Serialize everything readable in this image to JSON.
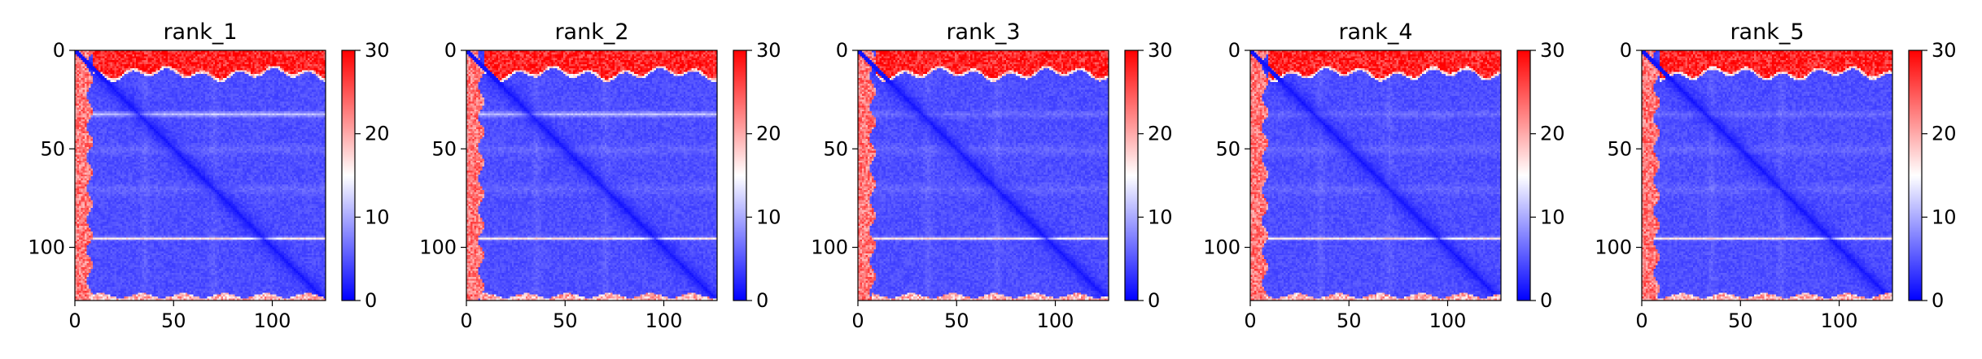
{
  "chart_data": [
    {
      "type": "heatmap",
      "title": "rank_1",
      "x_range": [
        0,
        127
      ],
      "y_range": [
        0,
        127
      ],
      "y_inverted": true,
      "x_ticks": [
        0,
        50,
        100
      ],
      "y_ticks": [
        0,
        50,
        100
      ],
      "colorbar": {
        "range": [
          0,
          30
        ],
        "ticks": [
          0,
          10,
          20,
          30
        ],
        "colormap": "bwr"
      },
      "strong_band": true
    },
    {
      "type": "heatmap",
      "title": "rank_2",
      "x_range": [
        0,
        127
      ],
      "y_range": [
        0,
        127
      ],
      "y_inverted": true,
      "x_ticks": [
        0,
        50,
        100
      ],
      "y_ticks": [
        0,
        50,
        100
      ],
      "colorbar": {
        "range": [
          0,
          30
        ],
        "ticks": [
          0,
          10,
          20,
          30
        ],
        "colormap": "bwr"
      },
      "strong_band": true
    },
    {
      "type": "heatmap",
      "title": "rank_3",
      "x_range": [
        0,
        127
      ],
      "y_range": [
        0,
        127
      ],
      "y_inverted": true,
      "x_ticks": [
        0,
        50,
        100
      ],
      "y_ticks": [
        0,
        50,
        100
      ],
      "colorbar": {
        "range": [
          0,
          30
        ],
        "ticks": [
          0,
          10,
          20,
          30
        ],
        "colormap": "bwr"
      },
      "strong_band": false
    },
    {
      "type": "heatmap",
      "title": "rank_4",
      "x_range": [
        0,
        127
      ],
      "y_range": [
        0,
        127
      ],
      "y_inverted": true,
      "x_ticks": [
        0,
        50,
        100
      ],
      "y_ticks": [
        0,
        50,
        100
      ],
      "colorbar": {
        "range": [
          0,
          30
        ],
        "ticks": [
          0,
          10,
          20,
          30
        ],
        "colormap": "bwr"
      },
      "strong_band": false
    },
    {
      "type": "heatmap",
      "title": "rank_5",
      "x_range": [
        0,
        127
      ],
      "y_range": [
        0,
        127
      ],
      "y_inverted": true,
      "x_ticks": [
        0,
        50,
        100
      ],
      "y_ticks": [
        0,
        50,
        100
      ],
      "colorbar": {
        "range": [
          0,
          30
        ],
        "ticks": [
          0,
          10,
          20,
          30
        ],
        "colormap": "bwr"
      },
      "strong_band": false
    }
  ]
}
